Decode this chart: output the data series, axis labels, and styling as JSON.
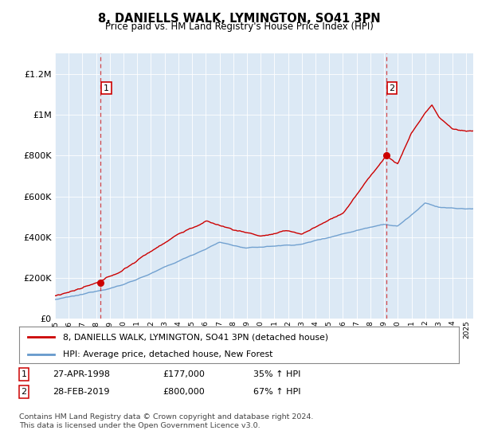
{
  "title": "8, DANIELLS WALK, LYMINGTON, SO41 3PN",
  "subtitle": "Price paid vs. HM Land Registry's House Price Index (HPI)",
  "ylim": [
    0,
    1300000
  ],
  "yticks": [
    0,
    200000,
    400000,
    600000,
    800000,
    1000000,
    1200000
  ],
  "ytick_labels": [
    "£0",
    "£200K",
    "£400K",
    "£600K",
    "£800K",
    "£1M",
    "£1.2M"
  ],
  "plot_bg_color": "#dce9f5",
  "sale1_year": 1998.33,
  "sale1_price": 177000,
  "sale2_year": 2019.16,
  "sale2_price": 800000,
  "red_color": "#cc0000",
  "blue_color": "#6699cc",
  "legend_label_red": "8, DANIELLS WALK, LYMINGTON, SO41 3PN (detached house)",
  "legend_label_blue": "HPI: Average price, detached house, New Forest",
  "footnote": "Contains HM Land Registry data © Crown copyright and database right 2024.\nThis data is licensed under the Open Government Licence v3.0."
}
